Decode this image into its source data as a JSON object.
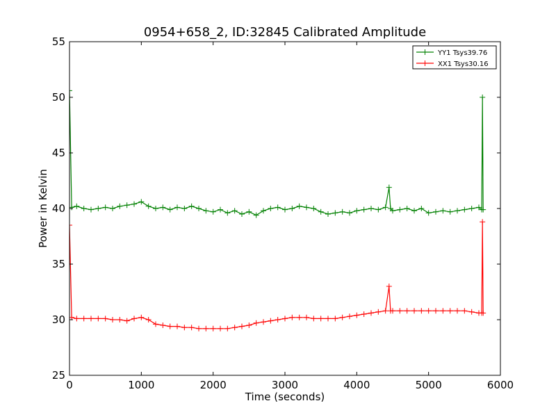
{
  "chart_data": {
    "type": "line",
    "title": "0954+658_2, ID:32845 Calibrated Amplitude",
    "xlabel": "Time (seconds)",
    "ylabel": "Power in Kelvin",
    "xlim": [
      0,
      6000
    ],
    "ylim": [
      25,
      55
    ],
    "xticks": [
      "0",
      "1000",
      "2000",
      "3000",
      "4000",
      "5000",
      "6000"
    ],
    "yticks": [
      "25",
      "30",
      "35",
      "40",
      "45",
      "50",
      "55"
    ],
    "grid": false,
    "legend_position": "top-right",
    "marker": "+",
    "series": [
      {
        "name": "YY1 Tsys39.76",
        "color": "#008000",
        "x": [
          0,
          30,
          100,
          200,
          300,
          400,
          500,
          600,
          700,
          800,
          900,
          1000,
          1100,
          1200,
          1300,
          1400,
          1500,
          1600,
          1700,
          1800,
          1900,
          2000,
          2100,
          2200,
          2300,
          2400,
          2500,
          2600,
          2700,
          2800,
          2900,
          3000,
          3100,
          3200,
          3300,
          3400,
          3500,
          3600,
          3700,
          3800,
          3900,
          4000,
          4100,
          4200,
          4300,
          4400,
          4450,
          4470,
          4500,
          4600,
          4700,
          4800,
          4900,
          5000,
          5100,
          5200,
          5300,
          5400,
          5500,
          5600,
          5700,
          5740,
          5750,
          5760
        ],
        "y": [
          50.6,
          40.1,
          40.2,
          40.0,
          39.9,
          40.0,
          40.1,
          40.0,
          40.2,
          40.3,
          40.4,
          40.6,
          40.2,
          40.0,
          40.1,
          39.9,
          40.1,
          40.0,
          40.2,
          40.0,
          39.8,
          39.7,
          39.9,
          39.6,
          39.8,
          39.5,
          39.7,
          39.4,
          39.8,
          40.0,
          40.1,
          39.9,
          40.0,
          40.2,
          40.1,
          40.0,
          39.7,
          39.5,
          39.6,
          39.7,
          39.6,
          39.8,
          39.9,
          40.0,
          39.9,
          40.1,
          41.9,
          40.0,
          39.8,
          39.9,
          40.0,
          39.8,
          40.0,
          39.6,
          39.7,
          39.8,
          39.7,
          39.8,
          39.9,
          40.0,
          40.1,
          39.9,
          50.0,
          39.9
        ]
      },
      {
        "name": "XX1 Tsys30.16",
        "color": "#ff0000",
        "x": [
          0,
          30,
          100,
          200,
          300,
          400,
          500,
          600,
          700,
          800,
          900,
          1000,
          1100,
          1200,
          1300,
          1400,
          1500,
          1600,
          1700,
          1800,
          1900,
          2000,
          2100,
          2200,
          2300,
          2400,
          2500,
          2600,
          2700,
          2800,
          2900,
          3000,
          3100,
          3200,
          3300,
          3400,
          3500,
          3600,
          3700,
          3800,
          3900,
          4000,
          4100,
          4200,
          4300,
          4400,
          4450,
          4470,
          4500,
          4600,
          4700,
          4800,
          4900,
          5000,
          5100,
          5200,
          5300,
          5400,
          5500,
          5600,
          5700,
          5740,
          5750,
          5760
        ],
        "y": [
          38.5,
          30.2,
          30.1,
          30.1,
          30.1,
          30.1,
          30.1,
          30.0,
          30.0,
          29.9,
          30.1,
          30.2,
          30.0,
          29.6,
          29.5,
          29.4,
          29.4,
          29.3,
          29.3,
          29.2,
          29.2,
          29.2,
          29.2,
          29.2,
          29.3,
          29.4,
          29.5,
          29.7,
          29.8,
          29.9,
          30.0,
          30.1,
          30.2,
          30.2,
          30.2,
          30.1,
          30.1,
          30.1,
          30.1,
          30.2,
          30.3,
          30.4,
          30.5,
          30.6,
          30.7,
          30.8,
          33.0,
          30.8,
          30.8,
          30.8,
          30.8,
          30.8,
          30.8,
          30.8,
          30.8,
          30.8,
          30.8,
          30.8,
          30.8,
          30.7,
          30.6,
          30.6,
          38.8,
          30.6
        ]
      }
    ]
  }
}
